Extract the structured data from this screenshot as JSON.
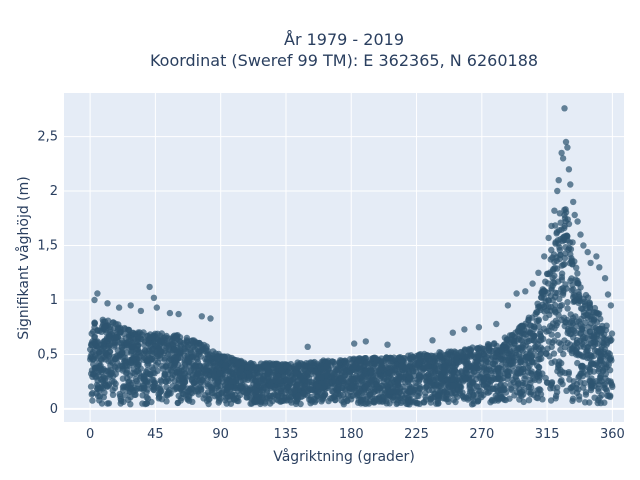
{
  "chart_data": {
    "type": "scatter",
    "title_line1": "År 1979 - 2019",
    "title_line2": "Koordinat (Sweref 99 TM): E 362365, N 6260188",
    "xlabel": "Vågriktning (grader)",
    "ylabel": "Signifikant våghöjd (m)",
    "xlim": [
      -18,
      368
    ],
    "ylim": [
      -0.12,
      2.9
    ],
    "x_ticks": [
      0,
      45,
      90,
      135,
      180,
      225,
      270,
      315,
      360
    ],
    "x_tick_labels": [
      "0",
      "45",
      "90",
      "135",
      "180",
      "225",
      "270",
      "315",
      "360"
    ],
    "y_ticks": [
      0,
      0.5,
      1,
      1.5,
      2,
      2.5
    ],
    "y_tick_labels": [
      "0",
      "0,5",
      "1",
      "1,5",
      "2",
      "2,5"
    ],
    "grid": true,
    "legend": "none",
    "marker_color": "#2e5570",
    "plot_bg": "#e5ecf6",
    "envelope": {
      "direction_deg": [
        0,
        5,
        10,
        20,
        30,
        45,
        60,
        75,
        90,
        105,
        120,
        135,
        150,
        165,
        180,
        195,
        210,
        225,
        240,
        255,
        270,
        280,
        290,
        300,
        310,
        315,
        320,
        325,
        330,
        335,
        340,
        345,
        350,
        355,
        360
      ],
      "max_height_m": [
        0.78,
        0.85,
        0.82,
        0.78,
        0.72,
        0.7,
        0.68,
        0.62,
        0.5,
        0.44,
        0.42,
        0.42,
        0.43,
        0.45,
        0.46,
        0.47,
        0.48,
        0.5,
        0.52,
        0.54,
        0.58,
        0.62,
        0.68,
        0.8,
        1.0,
        1.3,
        1.65,
        1.95,
        1.75,
        1.35,
        1.12,
        0.98,
        0.9,
        0.8,
        0.72
      ]
    },
    "highlight_points": [
      {
        "x": 5,
        "y": 1.06
      },
      {
        "x": 3,
        "y": 1.0
      },
      {
        "x": 12,
        "y": 0.97
      },
      {
        "x": 20,
        "y": 0.93
      },
      {
        "x": 28,
        "y": 0.95
      },
      {
        "x": 35,
        "y": 0.9
      },
      {
        "x": 41,
        "y": 1.12
      },
      {
        "x": 44,
        "y": 1.02
      },
      {
        "x": 46,
        "y": 0.93
      },
      {
        "x": 55,
        "y": 0.88
      },
      {
        "x": 61,
        "y": 0.87
      },
      {
        "x": 77,
        "y": 0.85
      },
      {
        "x": 83,
        "y": 0.83
      },
      {
        "x": 150,
        "y": 0.57
      },
      {
        "x": 182,
        "y": 0.6
      },
      {
        "x": 190,
        "y": 0.62
      },
      {
        "x": 205,
        "y": 0.59
      },
      {
        "x": 236,
        "y": 0.63
      },
      {
        "x": 250,
        "y": 0.7
      },
      {
        "x": 258,
        "y": 0.73
      },
      {
        "x": 268,
        "y": 0.75
      },
      {
        "x": 280,
        "y": 0.78
      },
      {
        "x": 288,
        "y": 0.95
      },
      {
        "x": 294,
        "y": 1.06
      },
      {
        "x": 300,
        "y": 1.08
      },
      {
        "x": 305,
        "y": 1.15
      },
      {
        "x": 309,
        "y": 1.25
      },
      {
        "x": 313,
        "y": 1.4
      },
      {
        "x": 316,
        "y": 1.57
      },
      {
        "x": 318,
        "y": 1.68
      },
      {
        "x": 320,
        "y": 1.82
      },
      {
        "x": 322,
        "y": 2.0
      },
      {
        "x": 323,
        "y": 2.1
      },
      {
        "x": 325,
        "y": 2.35
      },
      {
        "x": 326,
        "y": 2.3
      },
      {
        "x": 327,
        "y": 2.76
      },
      {
        "x": 328,
        "y": 2.45
      },
      {
        "x": 329,
        "y": 2.4
      },
      {
        "x": 330,
        "y": 2.2
      },
      {
        "x": 331,
        "y": 2.06
      },
      {
        "x": 333,
        "y": 1.9
      },
      {
        "x": 334,
        "y": 1.78
      },
      {
        "x": 336,
        "y": 1.72
      },
      {
        "x": 338,
        "y": 1.6
      },
      {
        "x": 340,
        "y": 1.5
      },
      {
        "x": 343,
        "y": 1.44
      },
      {
        "x": 345,
        "y": 1.34
      },
      {
        "x": 349,
        "y": 1.4
      },
      {
        "x": 351,
        "y": 1.3
      },
      {
        "x": 355,
        "y": 1.2
      },
      {
        "x": 357,
        "y": 1.05
      },
      {
        "x": 359,
        "y": 0.95
      }
    ]
  }
}
